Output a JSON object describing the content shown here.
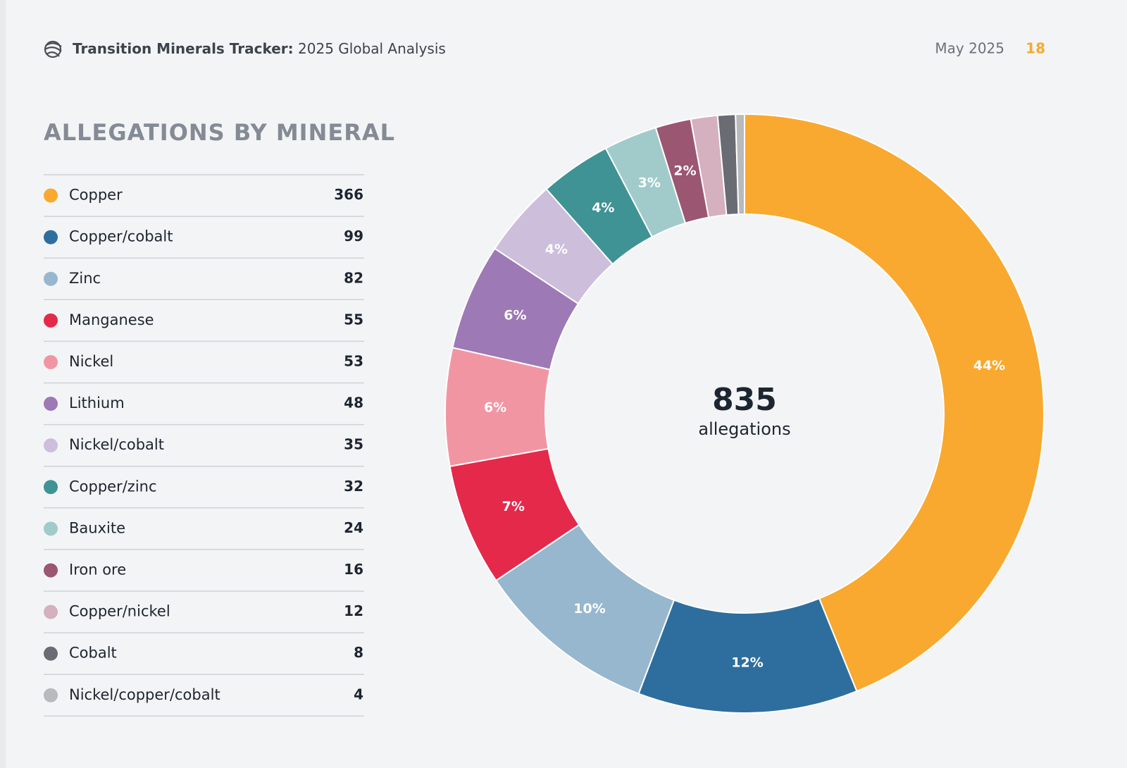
{
  "header": {
    "title_bold": "Transition Minerals Tracker:",
    "title_rest": "2025 Global Analysis",
    "date": "May 2025",
    "page": "18"
  },
  "chart_data": {
    "type": "donut",
    "title": "ALLEGATIONS BY MINERAL",
    "categories": [
      "Copper",
      "Copper/cobalt",
      "Zinc",
      "Manganese",
      "Nickel",
      "Lithium",
      "Nickel/cobalt",
      "Copper/zinc",
      "Bauxite",
      "Iron ore",
      "Copper/nickel",
      "Cobalt",
      "Nickel/copper/cobalt"
    ],
    "values": [
      366,
      99,
      82,
      55,
      53,
      48,
      35,
      32,
      24,
      16,
      12,
      8,
      4
    ],
    "value_labels": [
      "44%",
      "12%",
      "10%",
      "7%",
      "6%",
      "6%",
      "4%",
      "4%",
      "3%",
      "2%",
      null,
      null,
      null
    ],
    "colors": [
      "#f9a92f",
      "#2e6e9e",
      "#97b7cf",
      "#e5294b",
      "#f295a3",
      "#9d79b5",
      "#cdbedc",
      "#3f9394",
      "#a1cbcb",
      "#9b5672",
      "#d5b0bf",
      "#696d73",
      "#b8babd"
    ],
    "total": 835,
    "total_label": "allegations"
  }
}
